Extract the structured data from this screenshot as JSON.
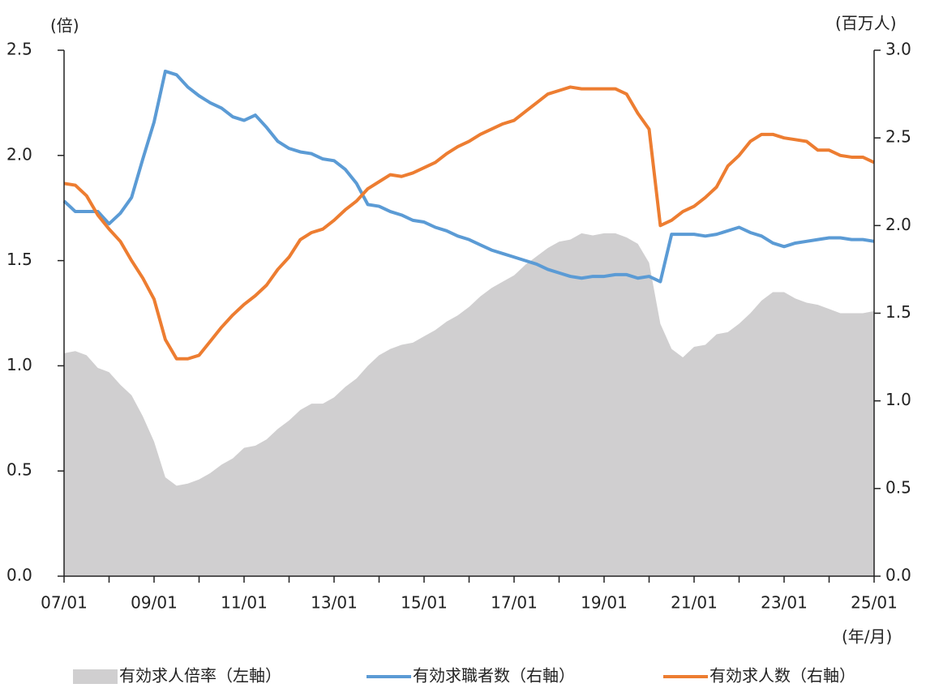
{
  "chart_data": {
    "type": "line",
    "legend": "bottom",
    "y_label": "(倍)",
    "y2_label": "(百万人)",
    "x_label": "(年/月)",
    "categories": [
      "07/01",
      null,
      null,
      null,
      null,
      null,
      null,
      null,
      "09/01",
      null,
      null,
      null,
      null,
      null,
      null,
      null,
      "11/01",
      null,
      null,
      null,
      null,
      null,
      null,
      null,
      "13/01",
      null,
      null,
      null,
      null,
      null,
      null,
      null,
      "15/01",
      null,
      null,
      null,
      null,
      null,
      null,
      null,
      "17/01",
      null,
      null,
      null,
      null,
      null,
      null,
      null,
      "19/01",
      null,
      null,
      null,
      null,
      null,
      null,
      null,
      "21/01",
      null,
      null,
      null,
      null,
      null,
      null,
      null,
      "23/01",
      null,
      null,
      null,
      null,
      null,
      null,
      null,
      "25/01"
    ],
    "ylim": [
      0,
      2.5
    ],
    "yticks": [
      {
        "value": 0,
        "label": "0.0"
      },
      0.5,
      {
        "value": 1,
        "label": "1.0"
      },
      1.5,
      {
        "value": 2,
        "label": "2.0"
      },
      2.5
    ],
    "y2lim": [
      0,
      3
    ],
    "y2ticks": [
      {
        "value": 0,
        "label": "0.0"
      },
      0.5,
      {
        "value": 1,
        "label": "1.0"
      },
      1.5,
      {
        "value": 2,
        "label": "2.0"
      },
      2.5,
      {
        "value": 3,
        "label": "3.0"
      }
    ],
    "series": [
      {
        "name": "有効求人倍率（左軸）",
        "type": "area",
        "color": "#d0cfd0",
        "values": [
          1.06,
          1.07,
          1.05,
          0.99,
          0.97,
          0.91,
          0.86,
          0.76,
          0.64,
          0.47,
          0.43,
          0.44,
          0.46,
          0.49,
          0.53,
          0.56,
          0.61,
          0.62,
          0.65,
          0.7,
          0.74,
          0.79,
          0.82,
          0.82,
          0.85,
          0.9,
          0.94,
          1.0,
          1.05,
          1.08,
          1.1,
          1.11,
          1.14,
          1.17,
          1.21,
          1.24,
          1.28,
          1.33,
          1.37,
          1.4,
          1.43,
          1.48,
          1.52,
          1.56,
          1.59,
          1.6,
          1.63,
          1.62,
          1.63,
          1.63,
          1.61,
          1.58,
          1.49,
          1.2,
          1.08,
          1.04,
          1.09,
          1.1,
          1.15,
          1.16,
          1.2,
          1.25,
          1.31,
          1.35,
          1.35,
          1.32,
          1.3,
          1.29,
          1.27,
          1.25,
          1.25,
          1.25,
          1.26
        ]
      },
      {
        "name": "有効求職者数（右軸）",
        "type": "line",
        "axis": "y2",
        "color": "#5b9bd5",
        "values": [
          2.14,
          2.08,
          2.08,
          2.08,
          2.01,
          2.07,
          2.16,
          2.38,
          2.59,
          2.88,
          2.86,
          2.79,
          2.74,
          2.7,
          2.67,
          2.62,
          2.6,
          2.63,
          2.56,
          2.48,
          2.44,
          2.42,
          2.41,
          2.38,
          2.37,
          2.32,
          2.24,
          2.12,
          2.11,
          2.08,
          2.06,
          2.03,
          2.02,
          1.99,
          1.97,
          1.94,
          1.92,
          1.89,
          1.86,
          1.84,
          1.82,
          1.8,
          1.78,
          1.75,
          1.73,
          1.71,
          1.7,
          1.71,
          1.71,
          1.72,
          1.72,
          1.7,
          1.71,
          1.68,
          1.95,
          1.95,
          1.95,
          1.94,
          1.95,
          1.97,
          1.99,
          1.96,
          1.94,
          1.9,
          1.88,
          1.9,
          1.91,
          1.92,
          1.93,
          1.93,
          1.92,
          1.92,
          1.91
        ]
      },
      {
        "name": "有効求人数（右軸）",
        "type": "line",
        "axis": "y2",
        "color": "#ed7d31",
        "values": [
          2.24,
          2.23,
          2.17,
          2.06,
          1.98,
          1.91,
          1.8,
          1.7,
          1.58,
          1.35,
          1.24,
          1.24,
          1.26,
          1.34,
          1.42,
          1.49,
          1.55,
          1.6,
          1.66,
          1.75,
          1.82,
          1.92,
          1.96,
          1.98,
          2.03,
          2.09,
          2.14,
          2.21,
          2.25,
          2.29,
          2.28,
          2.3,
          2.33,
          2.36,
          2.41,
          2.45,
          2.48,
          2.52,
          2.55,
          2.58,
          2.6,
          2.65,
          2.7,
          2.75,
          2.77,
          2.79,
          2.78,
          2.78,
          2.78,
          2.78,
          2.75,
          2.64,
          2.55,
          2.0,
          2.03,
          2.08,
          2.11,
          2.16,
          2.22,
          2.34,
          2.4,
          2.48,
          2.52,
          2.52,
          2.5,
          2.49,
          2.48,
          2.43,
          2.43,
          2.4,
          2.39,
          2.39,
          2.36
        ]
      }
    ]
  }
}
